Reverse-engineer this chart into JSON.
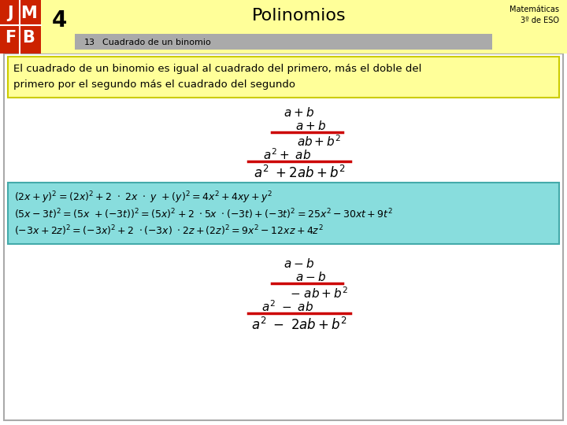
{
  "bg_color": "#ffffff",
  "header_yellow": "#ffff99",
  "logo_red": "#cc2200",
  "chapter_num": "4",
  "title": "Polinomios",
  "subtitle_num": "13",
  "subtitle": "Cuadrado de un binomio",
  "math_label": "Matemáticas",
  "grade_label": "3º de ESO",
  "def_text_line1": "El cuadrado de un binomio es igual al cuadrado del primero, más el doble del",
  "def_text_line2": "primero por el segundo más el cuadrado del segundo",
  "def_box_color": "#ffff99",
  "def_border_color": "#cccc00",
  "example_box_color": "#88dddd",
  "example_border_color": "#44aaaa",
  "red_line_color": "#cc0000",
  "text_color": "#000000",
  "gray_subtitle_bg": "#aaaaaa",
  "outer_border_color": "#aaaaaa"
}
